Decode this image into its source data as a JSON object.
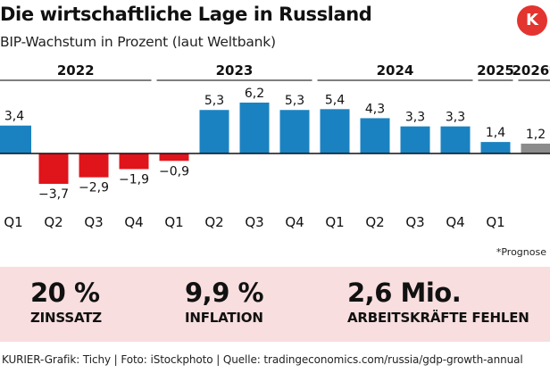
{
  "header": {
    "title": "Die wirtschaftliche Lage in Russland",
    "subtitle": "BIP-Wachstum in Prozent (laut Weltbank)",
    "logo_text": "K"
  },
  "chart_data": {
    "type": "bar",
    "title": "Die wirtschaftliche Lage in Russland",
    "ylabel": "BIP-Wachstum in Prozent",
    "years": [
      "2022",
      "2023",
      "2024",
      "2025",
      "2026*"
    ],
    "categories": [
      "Q1",
      "Q2",
      "Q3",
      "Q4",
      "Q1",
      "Q2",
      "Q3",
      "Q4",
      "Q1",
      "Q2",
      "Q3",
      "Q4",
      "Q1",
      ""
    ],
    "years_of_categories": [
      "2022",
      "2022",
      "2022",
      "2022",
      "2023",
      "2023",
      "2023",
      "2023",
      "2024",
      "2024",
      "2024",
      "2024",
      "2025",
      "2026*"
    ],
    "values": [
      3.4,
      -3.7,
      -2.9,
      -1.9,
      -0.9,
      5.3,
      6.2,
      5.3,
      5.4,
      4.3,
      3.3,
      3.3,
      1.4,
      1.2
    ],
    "value_labels": [
      "3,4",
      "−3,7",
      "−2,9",
      "−1,9",
      "−0,9",
      "5,3",
      "6,2",
      "5,3",
      "5,4",
      "4,3",
      "3,3",
      "3,3",
      "1,4",
      "1,2"
    ],
    "kinds": [
      "actual",
      "actual",
      "actual",
      "actual",
      "actual",
      "actual",
      "actual",
      "actual",
      "actual",
      "actual",
      "actual",
      "actual",
      "actual",
      "forecast"
    ],
    "ylim": [
      -4,
      7
    ],
    "colors": {
      "positive": "#1b82c1",
      "negative": "#e0141b",
      "forecast": "#8c8c8c"
    }
  },
  "footnote": "*Prognose",
  "stats": [
    {
      "value": "20 %",
      "label": "ZINSSATZ"
    },
    {
      "value": "9,9 %",
      "label": "INFLATION"
    },
    {
      "value": "2,6 Mio.",
      "label": "ARBEITSKRÄFTE FEHLEN"
    }
  ],
  "source": "KURIER-Grafik: Tichy | Foto: iStockphoto | Quelle: tradingeconomics.com/russia/gdp-growth-annual"
}
